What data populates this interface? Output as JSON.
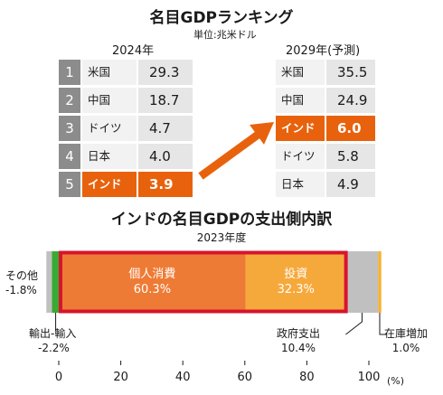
{
  "header": {
    "title": "名目GDPランキング",
    "unit": "単位:兆米ドル"
  },
  "ranking_2024": {
    "year_label": "2024年",
    "rows": [
      {
        "rank": "1",
        "country": "米国",
        "value": "29.3",
        "highlight": false
      },
      {
        "rank": "2",
        "country": "中国",
        "value": "18.7",
        "highlight": false
      },
      {
        "rank": "3",
        "country": "ドイツ",
        "value": "4.7",
        "highlight": false
      },
      {
        "rank": "4",
        "country": "日本",
        "value": "4.0",
        "highlight": false
      },
      {
        "rank": "5",
        "country": "インド",
        "value": "3.9",
        "highlight": true
      }
    ]
  },
  "ranking_2029": {
    "year_label": "2029年(予測)",
    "rows": [
      {
        "country": "米国",
        "value": "35.5",
        "highlight": false
      },
      {
        "country": "中国",
        "value": "24.9",
        "highlight": false
      },
      {
        "country": "インド",
        "value": "6.0",
        "highlight": true
      },
      {
        "country": "ドイツ",
        "value": "5.8",
        "highlight": false
      },
      {
        "country": "日本",
        "value": "4.9",
        "highlight": false
      }
    ]
  },
  "colors": {
    "accent": "#e8620d",
    "rank_badge": "#8c8c8c",
    "net_exports": "#3aaa35",
    "consumption": "#ee7b35",
    "investment": "#f6a93b",
    "government": "#c0c0c0",
    "inventory": "#f5b330",
    "highlight_frame": "#d7142e"
  },
  "chart_data": {
    "type": "bar",
    "orientation": "horizontal-stacked",
    "title": "インドの名目GDPの支出側内訳",
    "subtitle": "2023年度",
    "unit_label": "(%)",
    "xlim": [
      -3,
      102
    ],
    "xticks": [
      0,
      20,
      40,
      60,
      80,
      100
    ],
    "segments": [
      {
        "key": "net_exports",
        "name_lines": [
          "輸出-輸入",
          "-2.2%"
        ],
        "value": -2.2
      },
      {
        "key": "other",
        "name_lines": [
          "その他",
          "-1.8%"
        ],
        "value": -1.8
      },
      {
        "key": "consumption",
        "name_lines": [
          "個人消費",
          "60.3%"
        ],
        "value": 60.3
      },
      {
        "key": "investment",
        "name_lines": [
          "投資",
          "32.3%"
        ],
        "value": 32.3
      },
      {
        "key": "government",
        "name_lines": [
          "政府支出",
          "10.4%"
        ],
        "value": 10.4
      },
      {
        "key": "inventory",
        "name_lines": [
          "在庫増加",
          "1.0%"
        ],
        "value": 1.0
      }
    ]
  }
}
